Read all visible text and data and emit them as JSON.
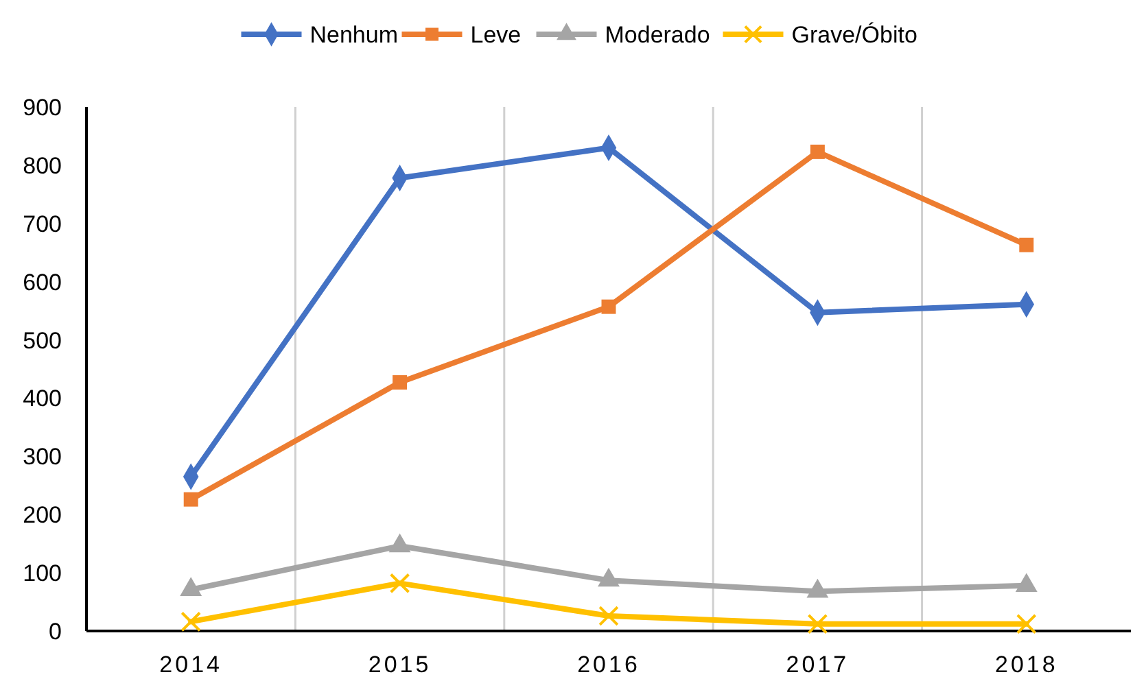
{
  "chart_data": {
    "type": "line",
    "categories": [
      "2014",
      "2015",
      "2016",
      "2017",
      "2018"
    ],
    "series": [
      {
        "name": "Nenhum",
        "color": "#4472c4",
        "marker": "diamond",
        "values": [
          265,
          778,
          830,
          547,
          561
        ]
      },
      {
        "name": "Leve",
        "color": "#ed7d31",
        "marker": "square",
        "values": [
          226,
          427,
          557,
          823,
          663
        ]
      },
      {
        "name": "Moderado",
        "color": "#a5a5a5",
        "marker": "triangle",
        "values": [
          71,
          146,
          87,
          68,
          78
        ]
      },
      {
        "name": "Grave/Óbito",
        "color": "#ffc000",
        "marker": "cross",
        "values": [
          16,
          82,
          26,
          12,
          12
        ]
      }
    ],
    "ylim": [
      0,
      900
    ],
    "yticks": [
      0,
      100,
      200,
      300,
      400,
      500,
      600,
      700,
      800,
      900
    ],
    "grid": "x",
    "legend": "top"
  }
}
